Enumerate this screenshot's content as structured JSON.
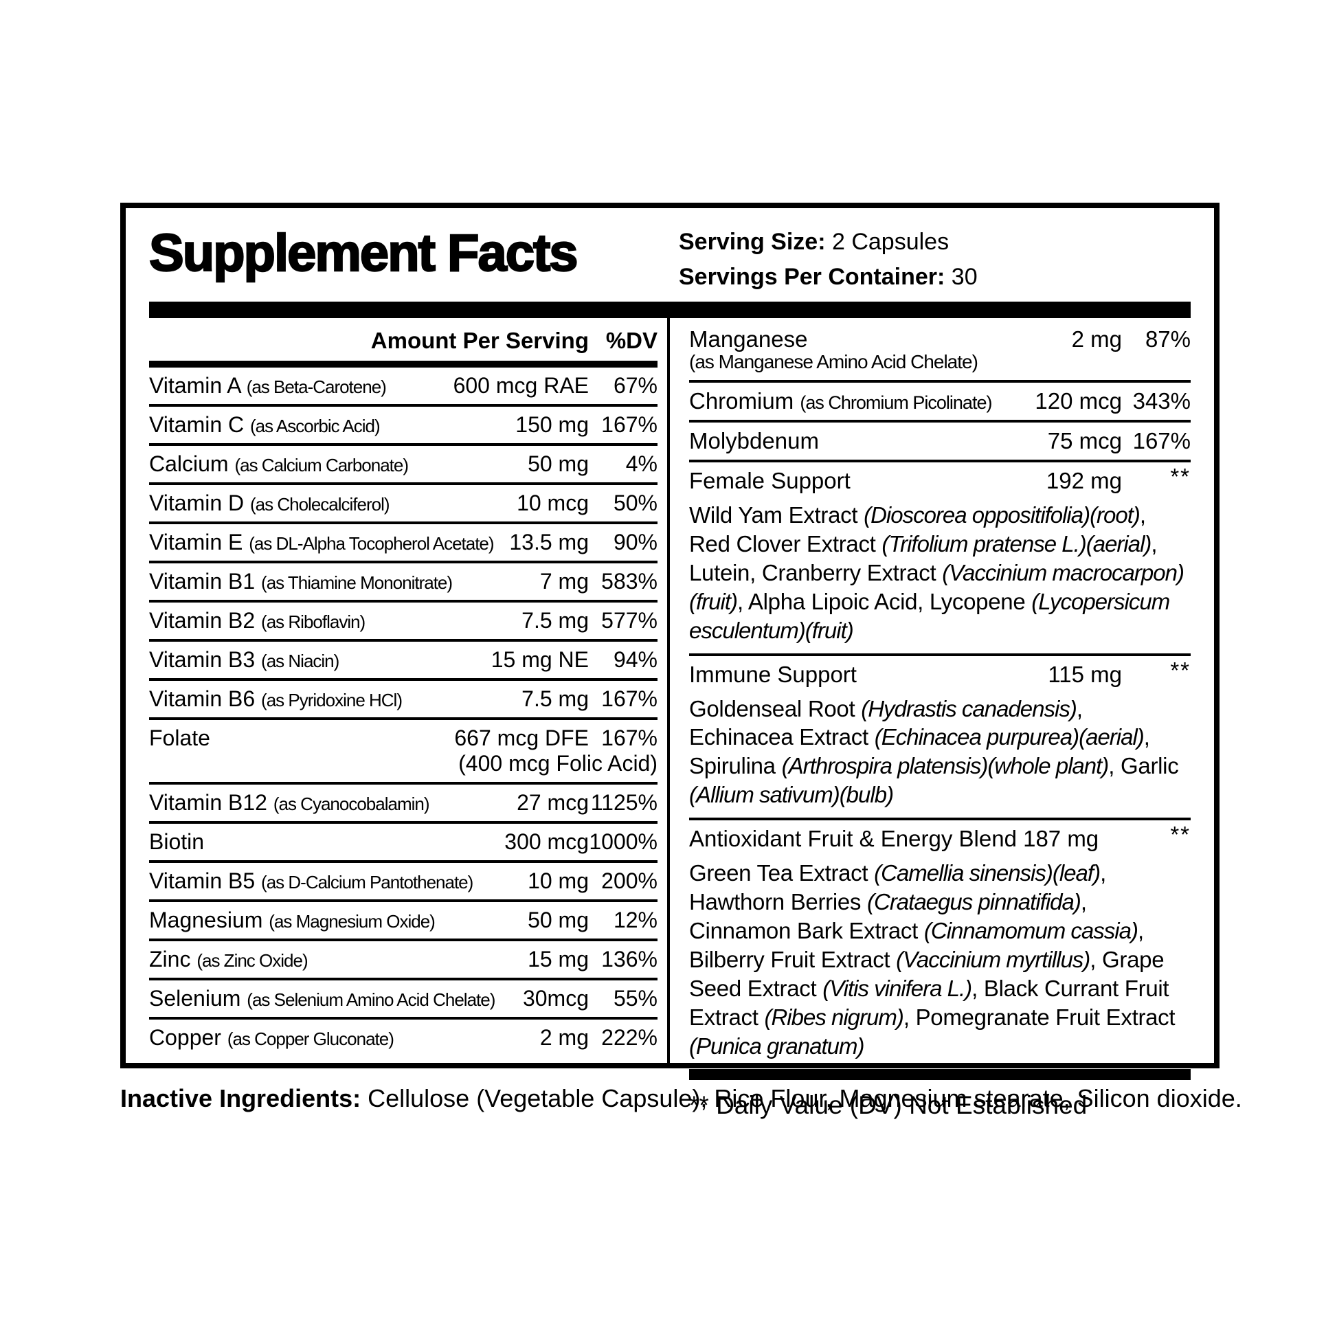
{
  "label": {
    "title": "Supplement Facts",
    "serving_size_label": "Serving Size:",
    "serving_size_value": "2 Capsules",
    "servings_per_container_label": "Servings Per Container:",
    "servings_per_container_value": "30",
    "column_headers": {
      "amount": "Amount Per Serving",
      "dv": "%DV"
    },
    "left_rows": [
      {
        "name": "Vitamin A",
        "form": "(as Beta-Carotene)",
        "amount": "600 mcg RAE",
        "dv": "67%"
      },
      {
        "name": "Vitamin C",
        "form": "(as Ascorbic Acid)",
        "amount": "150 mg",
        "dv": "167%"
      },
      {
        "name": "Calcium",
        "form": "(as Calcium Carbonate)",
        "amount": "50 mg",
        "dv": "4%"
      },
      {
        "name": "Vitamin D",
        "form": "(as Cholecalciferol)",
        "amount": "10 mcg",
        "dv": "50%"
      },
      {
        "name": "Vitamin E",
        "form": "(as DL-Alpha Tocopherol Acetate)",
        "amount": "13.5 mg",
        "dv": "90%"
      },
      {
        "name": "Vitamin B1",
        "form": "(as Thiamine Mononitrate)",
        "amount": "7 mg",
        "dv": "583%"
      },
      {
        "name": "Vitamin B2",
        "form": "(as Riboflavin)",
        "amount": "7.5 mg",
        "dv": "577%"
      },
      {
        "name": "Vitamin B3",
        "form": "(as Niacin)",
        "amount": "15 mg NE",
        "dv": "94%"
      },
      {
        "name": "Vitamin B6",
        "form": "(as Pyridoxine HCl)",
        "amount": "7.5 mg",
        "dv": "167%"
      },
      {
        "name": "Folate",
        "amount": "667 mcg DFE",
        "dv": "167%",
        "amount2": "(400 mcg Folic Acid)"
      },
      {
        "name": "Vitamin B12",
        "form": "(as Cyanocobalamin)",
        "amount": "27 mcg",
        "dv": "1125%"
      },
      {
        "name": "Biotin",
        "amount": "300 mcg",
        "dv": "1000%"
      },
      {
        "name": "Vitamin B5",
        "form": "(as D-Calcium Pantothenate)",
        "amount": "10 mg",
        "dv": "200%"
      },
      {
        "name": "Magnesium",
        "form": "(as Magnesium Oxide)",
        "amount": "50 mg",
        "dv": "12%"
      },
      {
        "name": "Zinc",
        "form": "(as Zinc Oxide)",
        "amount": "15 mg",
        "dv": "136%"
      },
      {
        "name": "Selenium",
        "form": "(as Selenium Amino Acid Chelate)",
        "amount": "30mcg",
        "dv": "55%"
      },
      {
        "name": "Copper",
        "form": "(as Copper Gluconate)",
        "amount": "2 mg",
        "dv": "222%"
      }
    ],
    "right_rows": [
      {
        "type": "nutrient",
        "name": "Manganese",
        "amount": "2 mg",
        "dv": "87%",
        "form_below": "(as Manganese Amino Acid Chelate)",
        "sep": true
      },
      {
        "type": "nutrient",
        "name": "Chromium",
        "form": "(as Chromium Picolinate)",
        "amount": "120 mcg",
        "dv": "343%",
        "sep": true
      },
      {
        "type": "nutrient",
        "name": "Molybdenum",
        "amount": "75 mcg",
        "dv": "167%",
        "sep": true
      },
      {
        "type": "blend",
        "name": "Female Support",
        "amount": "192 mg",
        "dv": "**",
        "sep": true,
        "description": [
          {
            "t": "Wild Yam Extract ",
            "i": false
          },
          {
            "t": "(Dioscorea oppositifolia)(root)",
            "i": true
          },
          {
            "t": ", Red Clover Extract ",
            "i": false
          },
          {
            "t": "(Trifolium pratense L.)(aerial)",
            "i": true
          },
          {
            "t": ", Lutein, Cranberry Extract ",
            "i": false
          },
          {
            "t": "(Vaccinium macrocarpon)(fruit)",
            "i": true
          },
          {
            "t": ", Alpha Lipoic Acid, Lycopene ",
            "i": false
          },
          {
            "t": "(Lycopersicum esculentum)(fruit)",
            "i": true
          }
        ]
      },
      {
        "type": "blend",
        "name": "Immune Support",
        "amount": "115 mg",
        "dv": "**",
        "sep": true,
        "description": [
          {
            "t": "Goldenseal Root ",
            "i": false
          },
          {
            "t": "(Hydrastis canadensis)",
            "i": true
          },
          {
            "t": ", Echinacea Extract ",
            "i": false
          },
          {
            "t": "(Echinacea purpurea)(aerial)",
            "i": true
          },
          {
            "t": ", Spirulina ",
            "i": false
          },
          {
            "t": "(Arthrospira platensis)(whole plant)",
            "i": true
          },
          {
            "t": ", Garlic ",
            "i": false
          },
          {
            "t": "(Allium sativum)(bulb)",
            "i": true
          }
        ]
      },
      {
        "type": "blend",
        "name": "Antioxidant Fruit & Energy Blend 187 mg",
        "amount": "",
        "dv": "**",
        "sep": false,
        "description": [
          {
            "t": "Green Tea Extract ",
            "i": false
          },
          {
            "t": "(Camellia sinensis)(leaf)",
            "i": true
          },
          {
            "t": ", Hawthorn Berries ",
            "i": false
          },
          {
            "t": "(Crataegus pinnatifida)",
            "i": true
          },
          {
            "t": ", Cinnamon Bark Extract ",
            "i": false
          },
          {
            "t": "(Cinnamomum cassia)",
            "i": true
          },
          {
            "t": ", Bilberry Fruit Extract ",
            "i": false
          },
          {
            "t": "(Vaccinium myrtillus)",
            "i": true
          },
          {
            "t": ", Grape Seed Extract ",
            "i": false
          },
          {
            "t": "(Vitis vinifera L.)",
            "i": true
          },
          {
            "t": ", Black Currant Fruit Extract ",
            "i": false
          },
          {
            "t": "(Ribes nigrum)",
            "i": true
          },
          {
            "t": ", Pomegranate Fruit Extract ",
            "i": false
          },
          {
            "t": "(Punica granatum)",
            "i": true
          }
        ]
      }
    ],
    "footnote": "** Daily Value (DV) Not Established",
    "inactive_label": "Inactive Ingredients:",
    "inactive_value": "Cellulose (Vegetable Capsule), Rice Flour, Magnesium stearate, Silicon dioxide."
  }
}
